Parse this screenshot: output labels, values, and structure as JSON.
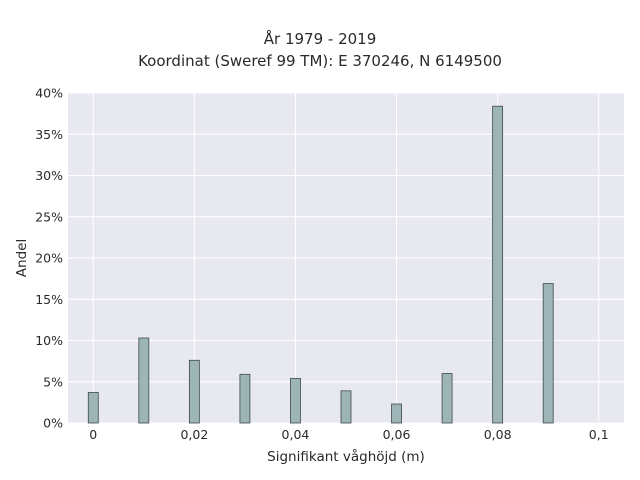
{
  "chart_data": {
    "type": "bar",
    "title_lines": [
      "År 1979 - 2019",
      "Koordinat (Sweref 99 TM): E 370246, N 6149500"
    ],
    "xlabel": "Signifikant våghöjd (m)",
    "ylabel": "Andel",
    "x": [
      0,
      0.01,
      0.02,
      0.03,
      0.04,
      0.05,
      0.06,
      0.07,
      0.08,
      0.09
    ],
    "values": [
      3.7,
      10.3,
      7.6,
      5.9,
      5.4,
      3.9,
      2.3,
      6.0,
      38.4,
      16.9
    ],
    "xlim": [
      -0.005,
      0.105
    ],
    "ylim": [
      0,
      40
    ],
    "x_ticks": [
      0,
      0.02,
      0.04,
      0.06,
      0.08,
      0.1
    ],
    "x_tick_labels": [
      "0",
      "0,02",
      "0,04",
      "0,06",
      "0,08",
      "0,1"
    ],
    "y_ticks": [
      0,
      5,
      10,
      15,
      20,
      25,
      30,
      35,
      40
    ],
    "y_tick_labels": [
      "0%",
      "5%",
      "10%",
      "15%",
      "20%",
      "25%",
      "30%",
      "35%",
      "40%"
    ],
    "grid": true,
    "colors": {
      "bar_fill": "#9db5b6",
      "bar_stroke": "#3e4a4a",
      "plot_bg": "#e8e8f0",
      "grid": "#ffffff"
    }
  }
}
